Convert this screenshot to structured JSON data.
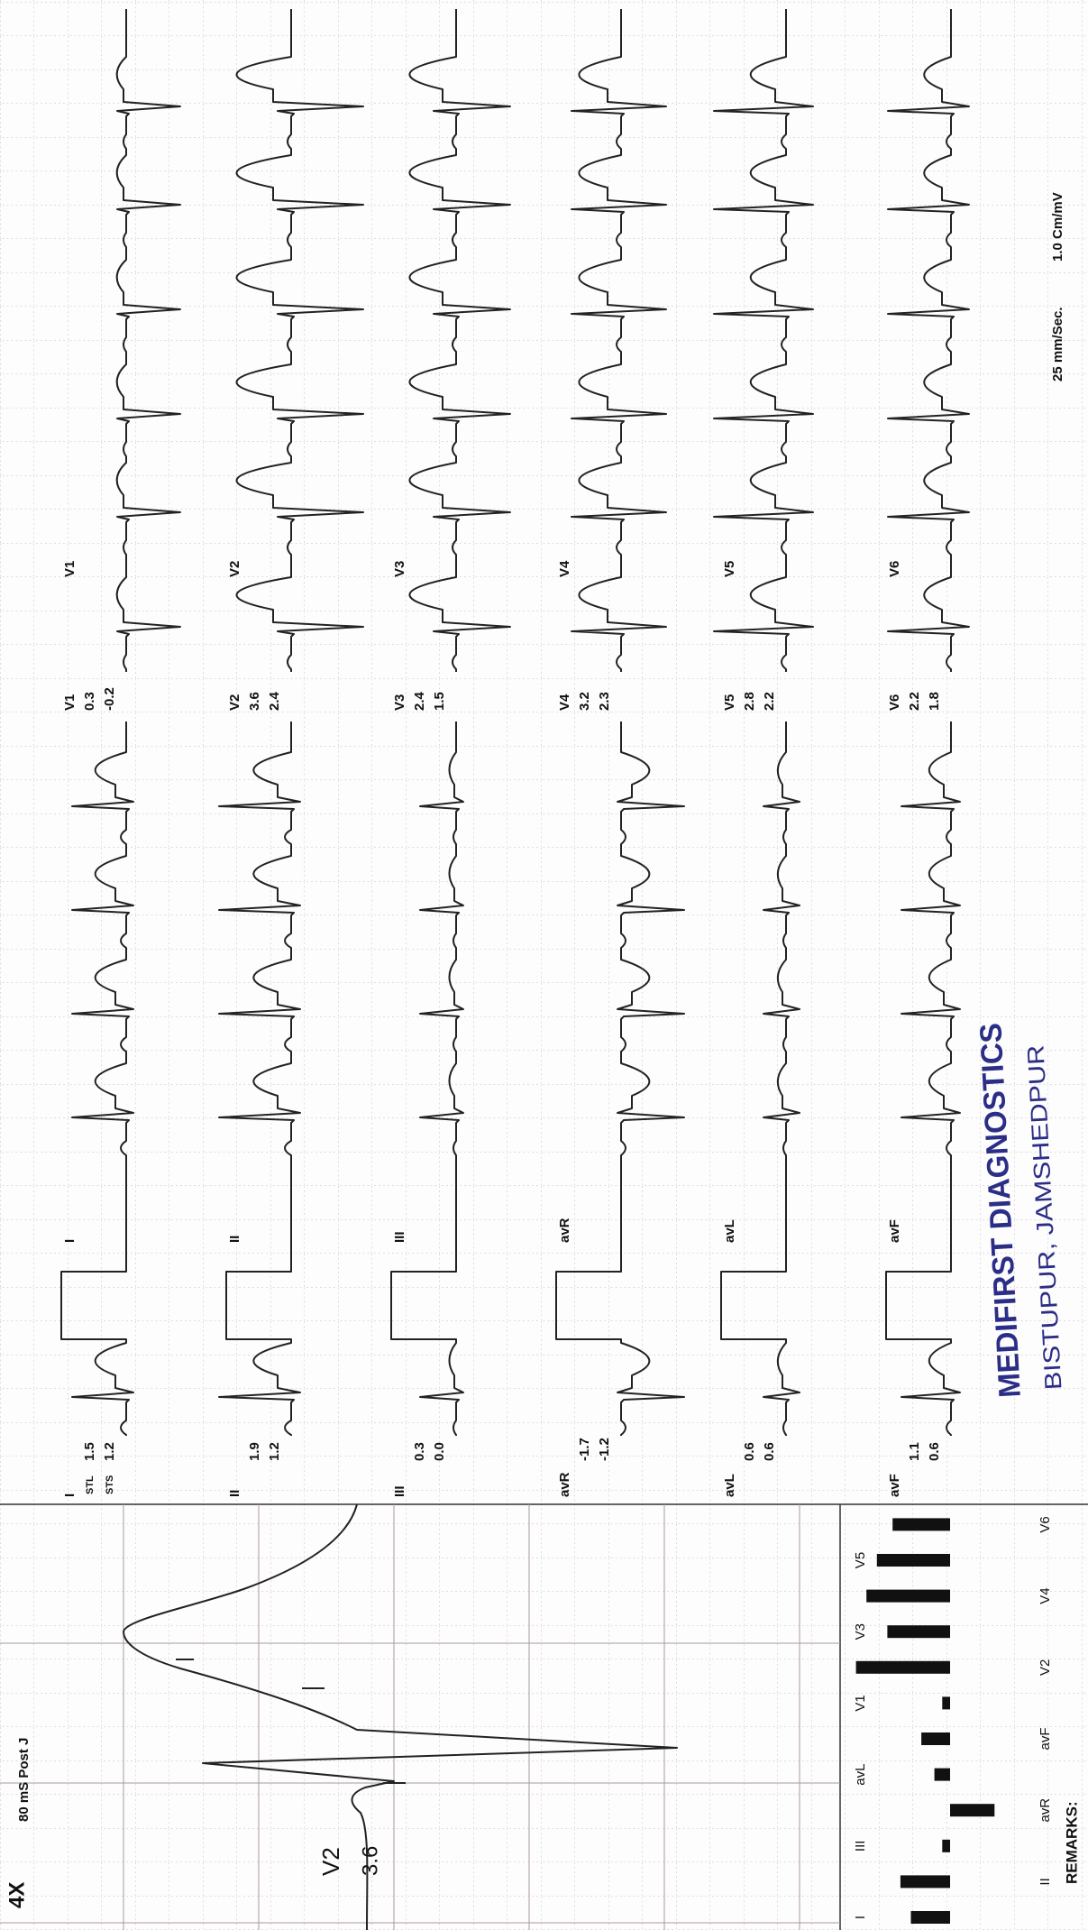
{
  "header": {
    "speed": "25 mm/Sec.",
    "gain": "1.0 Cm/mV"
  },
  "zoom": {
    "magnification": "4X",
    "caption": "80 mS Post J"
  },
  "captions": {
    "stl": "STL",
    "sts": "STS"
  },
  "leads": [
    {
      "name": "I",
      "stl": 1.5,
      "sts": 1.2
    },
    {
      "name": "II",
      "stl": 1.9,
      "sts": 1.2
    },
    {
      "name": "III",
      "stl": 0.3,
      "sts": {
        "value": 0,
        "label": "0.0"
      }
    },
    {
      "name": "avR",
      "stl": -1.7,
      "sts": -1.2
    },
    {
      "name": "avL",
      "stl": 0.6,
      "sts": 0.6
    },
    {
      "name": "avF",
      "stl": 1.1,
      "sts": 0.6
    },
    {
      "name": "V1",
      "stl": 0.3,
      "sts": -0.2
    },
    {
      "name": "V2",
      "stl": 3.6,
      "sts": 2.4
    },
    {
      "name": "V3",
      "stl": 2.4,
      "sts": 1.5
    },
    {
      "name": "V4",
      "stl": 3.2,
      "sts": 2.3
    },
    {
      "name": "V5",
      "stl": 2.8,
      "sts": 2.2
    },
    {
      "name": "V6",
      "stl": 2.2,
      "sts": 1.8
    }
  ],
  "remarks": {
    "label": "REMARKS:"
  },
  "stamp": {
    "line1": "MEDIFIRST DIAGNOSTICS",
    "line2": "BISTUPUR, JAMSHEDPUR"
  }
}
